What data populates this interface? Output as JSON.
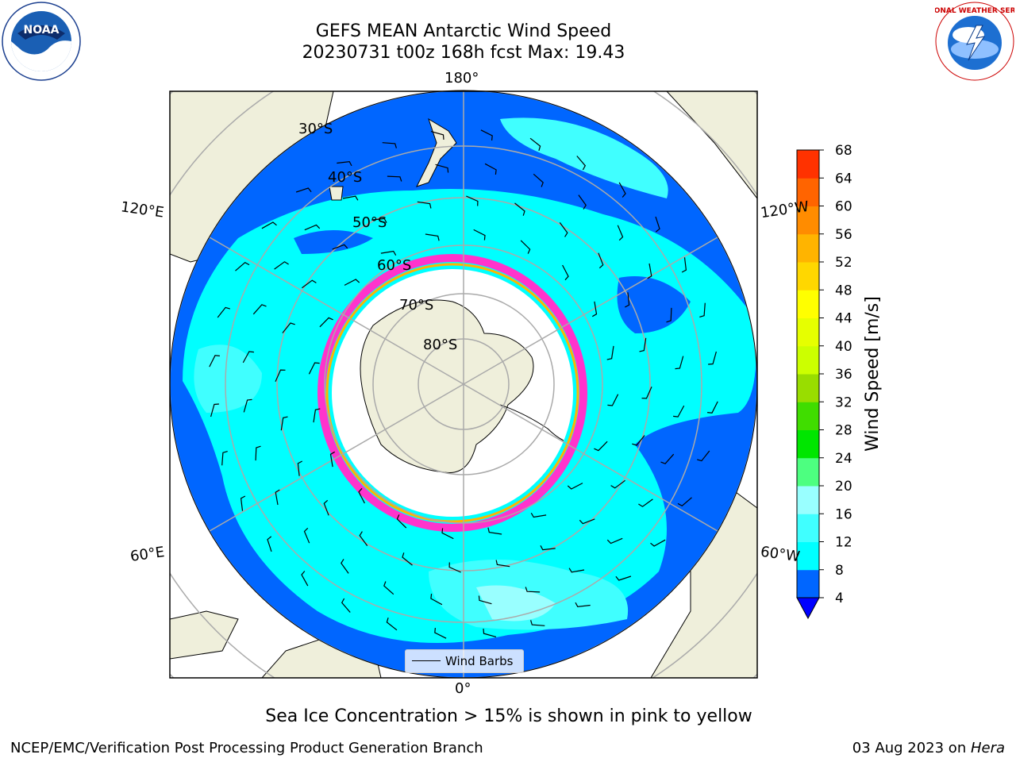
{
  "title": {
    "line1": "GEFS MEAN Antarctic Wind Speed",
    "line2": "20230731 t00z 168h fcst   Max: 19.43"
  },
  "logos": {
    "left": "noaa-logo",
    "right": "nws-logo",
    "left_text": "NOAA",
    "right_text": "NATIONAL WEATHER SERVICE"
  },
  "map": {
    "projection": "south-polar-stereographic",
    "lon_labels": [
      "180°",
      "120°E",
      "120°W",
      "60°E",
      "60°W",
      "0°"
    ],
    "lat_labels": [
      "30°S",
      "40°S",
      "50°S",
      "60°S",
      "70°S",
      "80°S"
    ],
    "legend_label": "Wind Barbs"
  },
  "colorbar": {
    "label": "Wind Speed [m/s]",
    "ticks": [
      "4",
      "8",
      "12",
      "16",
      "20",
      "24",
      "28",
      "32",
      "36",
      "40",
      "44",
      "48",
      "52",
      "56",
      "60",
      "64",
      "68"
    ],
    "colors": [
      "#0066ff",
      "#00ffff",
      "#40ffff",
      "#99ffff",
      "#4dff80",
      "#00e600",
      "#40dd00",
      "#99dd00",
      "#ccff00",
      "#e6ff00",
      "#ffff00",
      "#ffd700",
      "#ffb400",
      "#ff8c00",
      "#ff6400",
      "#ff3200",
      "#ff0000"
    ],
    "extend_color": "#0000ff"
  },
  "note": "Sea Ice Concentration > 15% is shown in pink to yellow",
  "footer": {
    "left": "NCEP/EMC/Verification Post Processing Product Generation Branch",
    "right_date": "03 Aug 2023 on ",
    "right_machine": "Hera"
  }
}
